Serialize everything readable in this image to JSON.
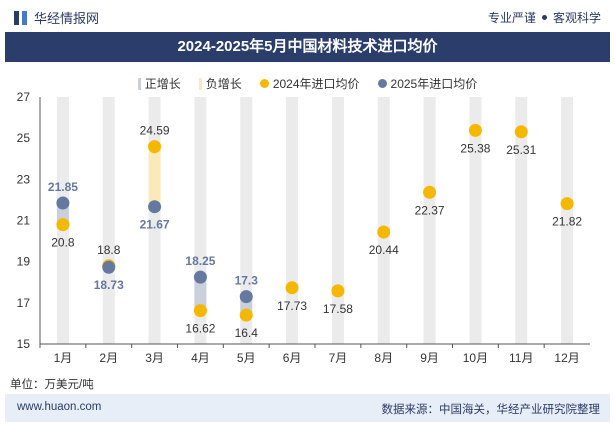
{
  "header": {
    "logo_text": "华经情报网",
    "tagline_left": "专业严谨",
    "tagline_right": "客观科学"
  },
  "chart_data": {
    "type": "line",
    "title": "2024-2025年5月中国材料技术进口均价",
    "categories": [
      "1月",
      "2月",
      "3月",
      "4月",
      "5月",
      "6月",
      "7月",
      "8月",
      "9月",
      "10月",
      "11月",
      "12月"
    ],
    "series": [
      {
        "name": "2024年进口均价",
        "color": "#f5b800",
        "values": [
          20.8,
          18.8,
          24.59,
          16.62,
          16.4,
          17.73,
          17.58,
          20.44,
          22.37,
          25.38,
          25.31,
          21.82
        ],
        "labels": [
          "20.8",
          "18.8",
          "24.59",
          "16.62",
          "16.4",
          "17.73",
          "17.58",
          "20.44",
          "22.37",
          "25.38",
          "25.31",
          "21.82"
        ]
      },
      {
        "name": "2025年进口均价",
        "color": "#6478a0",
        "values": [
          21.85,
          18.73,
          21.67,
          18.25,
          17.3,
          null,
          null,
          null,
          null,
          null,
          null,
          null
        ],
        "labels": [
          "21.85",
          "18.73",
          "21.67",
          "18.25",
          "17.3",
          "",
          "",
          "",
          "",
          "",
          "",
          ""
        ]
      }
    ],
    "legend": [
      {
        "name": "正增长",
        "color": "#c9d0dc"
      },
      {
        "name": "负增长",
        "color": "#fde9b8"
      },
      {
        "name": "2024年进口均价",
        "color": "#f5b800"
      },
      {
        "name": "2025年进口均价",
        "color": "#6478a0"
      }
    ],
    "ylim": [
      15,
      27
    ],
    "yticks": [
      15,
      17,
      19,
      21,
      23,
      25,
      27
    ],
    "grid": false,
    "legend_position": "top-center"
  },
  "unit_label": "单位：万美元/吨",
  "footer": {
    "site": "www.huaon.com",
    "source": "数据来源：中国海关，华经产业研究院整理"
  }
}
